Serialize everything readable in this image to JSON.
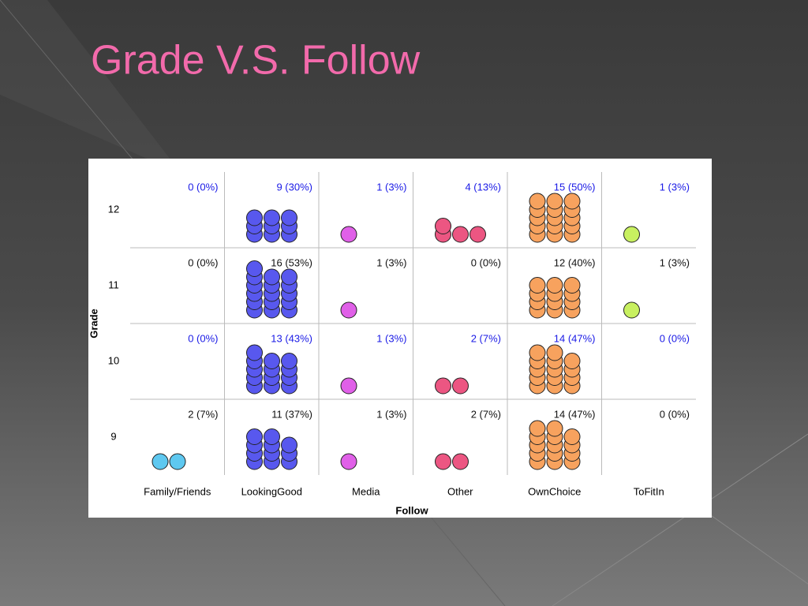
{
  "chart_data": {
    "type": "dotgrid",
    "title": "Grade V.S. Follow",
    "x_label": "Follow",
    "y_label": "Grade",
    "categories": [
      "Family/Friends",
      "LookingGood",
      "Media",
      "Other",
      "OwnChoice",
      "ToFitIn"
    ],
    "colors": [
      "#5ec8f0",
      "#5858ee",
      "#e060e8",
      "#ec5682",
      "#f7a25e",
      "#c8f060"
    ],
    "series": [
      {
        "name": "12",
        "color": "#1a1ae6",
        "values": [
          0,
          9,
          1,
          4,
          15,
          1
        ],
        "value_labels": [
          "0 (0%)",
          "9 (30%)",
          "1 (3%)",
          "4 (13%)",
          "15 (50%)",
          "1 (3%)"
        ]
      },
      {
        "name": "11",
        "color": "#111111",
        "values": [
          0,
          16,
          1,
          0,
          12,
          1
        ],
        "value_labels": [
          "0 (0%)",
          "16 (53%)",
          "1 (3%)",
          "0 (0%)",
          "12 (40%)",
          "1 (3%)"
        ]
      },
      {
        "name": "10",
        "color": "#1a1ae6",
        "values": [
          0,
          13,
          1,
          2,
          14,
          0
        ],
        "value_labels": [
          "0 (0%)",
          "13 (43%)",
          "1 (3%)",
          "2 (7%)",
          "14 (47%)",
          "0 (0%)"
        ]
      },
      {
        "name": "9",
        "color": "#111111",
        "values": [
          2,
          11,
          1,
          2,
          14,
          0
        ],
        "value_labels": [
          "2 (7%)",
          "11 (37%)",
          "1 (3%)",
          "2 (7%)",
          "14 (47%)",
          "0 (0%)"
        ]
      }
    ]
  }
}
